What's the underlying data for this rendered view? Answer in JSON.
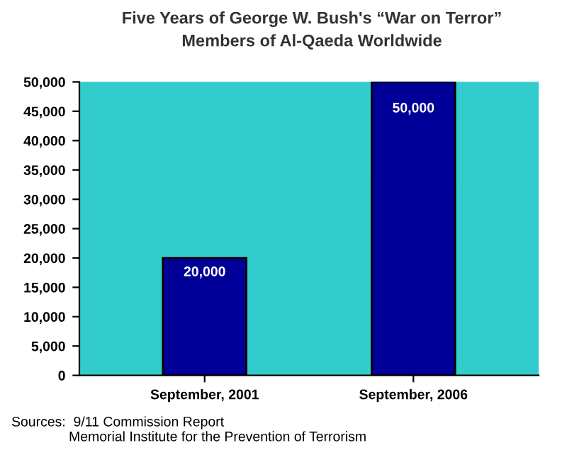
{
  "chart_data": {
    "type": "bar",
    "title": "Five Years of George W. Bush's “War on Terror”",
    "subtitle": "Members of Al-Qaeda Worldwide",
    "categories": [
      "September, 2001",
      "September, 2006"
    ],
    "values": [
      20000,
      50000
    ],
    "color": "#000099",
    "value_labels": [
      "20,000",
      "50,000"
    ],
    "ylim": [
      0,
      50000
    ],
    "yticks": [
      {
        "value": 0,
        "label": "0"
      },
      {
        "value": 5000,
        "label": "5,000"
      },
      {
        "value": 10000,
        "label": "10,000"
      },
      {
        "value": 15000,
        "label": "15,000"
      },
      {
        "value": 20000,
        "label": "20,000"
      },
      {
        "value": 25000,
        "label": "25,000"
      },
      {
        "value": 30000,
        "label": "30,000"
      },
      {
        "value": 35000,
        "label": "35,000"
      },
      {
        "value": 40000,
        "label": "40,000"
      },
      {
        "value": 45000,
        "label": "45,000"
      },
      {
        "value": 50000,
        "label": "50,000"
      }
    ],
    "grid": false,
    "legend": false,
    "annotations": [
      "Sources:  9/11 Commission Report\n               Memorial Institute for the Prevention of Terrorism"
    ]
  }
}
